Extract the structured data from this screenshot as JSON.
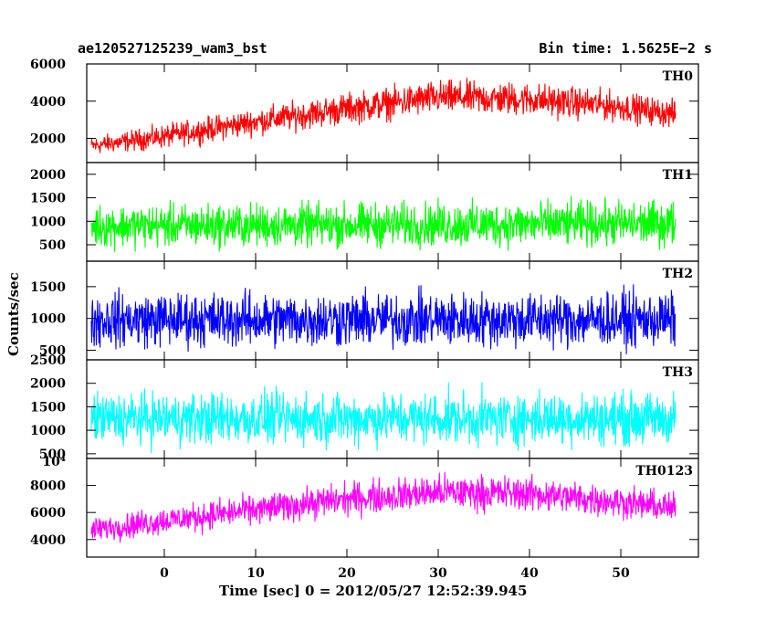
{
  "header": {
    "left": "ae120527125239_wam3_bst",
    "right": "Bin time: 1.5625E−2 s"
  },
  "chart_data": {
    "type": "line",
    "xlabel": "Time [sec] 0 = 2012/05/27 12:52:39.945",
    "ylabel": "Counts/sec",
    "xlim": [
      -8.5,
      58.5
    ],
    "xticks": [
      0,
      10,
      20,
      30,
      40,
      50
    ],
    "x_range_of_data": [
      -8,
      56
    ],
    "panels": [
      {
        "label": "TH0",
        "color": "#ff0000",
        "ylim": [
          700,
          6000
        ],
        "yticks": [
          2000,
          4000,
          6000
        ],
        "envelope": {
          "t": [
            -8,
            0,
            10,
            20,
            30,
            40,
            50,
            56
          ],
          "center": [
            1600,
            2100,
            2900,
            3600,
            4200,
            4100,
            3700,
            3300
          ],
          "spread": [
            700,
            900,
            1050,
            1200,
            1300,
            1300,
            1150,
            1050
          ]
        }
      },
      {
        "label": "TH1",
        "color": "#00ff00",
        "ylim": [
          150,
          2250
        ],
        "yticks": [
          500,
          1000,
          1500,
          2000
        ],
        "envelope": {
          "t": [
            -8,
            56
          ],
          "center": [
            900,
            950
          ],
          "spread": [
            650,
            700
          ]
        }
      },
      {
        "label": "TH2",
        "color": "#0000ff",
        "ylim": [
          350,
          1900
        ],
        "yticks": [
          500,
          1000,
          1500
        ],
        "envelope": {
          "t": [
            -8,
            56
          ],
          "center": [
            980,
            980
          ],
          "spread": [
            620,
            620
          ]
        }
      },
      {
        "label": "TH3",
        "color": "#00ffff",
        "ylim": [
          400,
          2500
        ],
        "yticks": [
          500,
          1000,
          1500,
          2000,
          2500
        ],
        "envelope": {
          "t": [
            -8,
            56
          ],
          "center": [
            1250,
            1250
          ],
          "spread": [
            800,
            800
          ]
        }
      },
      {
        "label": "TH0123",
        "color": "#ff00ff",
        "ylim": [
          2700,
          10000
        ],
        "yticks": [
          4000,
          6000,
          8000
        ],
        "top_tick_label": "10⁴",
        "envelope": {
          "t": [
            -8,
            0,
            10,
            20,
            30,
            40,
            50,
            56
          ],
          "center": [
            4700,
            5400,
            6200,
            7000,
            7500,
            7400,
            6800,
            6300
          ],
          "spread": [
            1300,
            1500,
            1600,
            1750,
            1850,
            1850,
            1700,
            1600
          ]
        }
      }
    ]
  }
}
